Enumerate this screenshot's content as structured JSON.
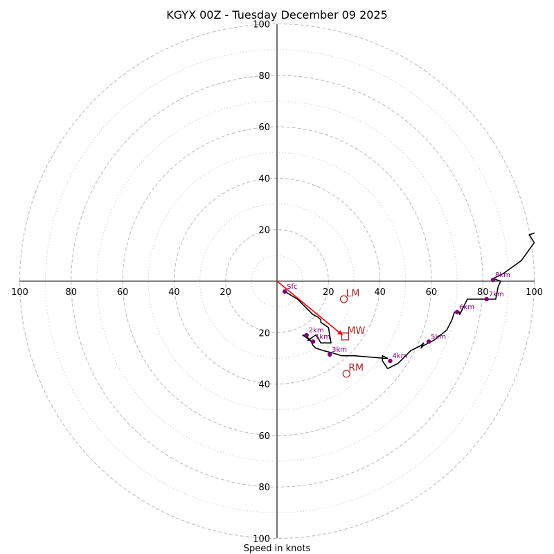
{
  "chart_data": {
    "type": "hodograph",
    "title": "KGYX 00Z - Tuesday December 09 2025",
    "xlabel": "Speed in knots",
    "xlim": [
      -100,
      100
    ],
    "ylim": [
      -100,
      100
    ],
    "rings_major": [
      20,
      40,
      60,
      80,
      100
    ],
    "rings_minor": [
      10,
      30,
      50,
      70,
      90
    ],
    "ticks": {
      "x": [
        {
          "v": -100,
          "label": "100"
        },
        {
          "v": -80,
          "label": "80"
        },
        {
          "v": -60,
          "label": "60"
        },
        {
          "v": -40,
          "label": "40"
        },
        {
          "v": -20,
          "label": "20"
        },
        {
          "v": 20,
          "label": "20"
        },
        {
          "v": 40,
          "label": "40"
        },
        {
          "v": 60,
          "label": "60"
        },
        {
          "v": 80,
          "label": "80"
        },
        {
          "v": 100,
          "label": "100"
        }
      ],
      "y": [
        {
          "v": 100,
          "label": "100"
        },
        {
          "v": 80,
          "label": "80"
        },
        {
          "v": 60,
          "label": "60"
        },
        {
          "v": 40,
          "label": "40"
        },
        {
          "v": 20,
          "label": "20"
        },
        {
          "v": -20,
          "label": "20"
        },
        {
          "v": -40,
          "label": "40"
        },
        {
          "v": -60,
          "label": "60"
        },
        {
          "v": -80,
          "label": "80"
        },
        {
          "v": -100,
          "label": "100"
        }
      ]
    },
    "wind_profile": {
      "u": [
        3,
        8,
        10,
        14,
        16,
        17,
        17,
        20,
        21,
        21,
        17,
        16,
        15,
        12,
        13,
        11,
        10,
        13,
        14,
        15,
        18,
        22,
        25,
        30,
        42,
        43,
        41,
        41,
        43,
        47,
        52,
        56,
        57,
        56,
        57,
        59,
        61,
        66,
        68,
        69,
        71,
        71,
        74,
        80,
        85,
        86,
        87,
        84,
        88,
        95,
        100,
        98,
        101
      ],
      "v": [
        -4,
        -7,
        -9,
        -13,
        -14,
        -15,
        -16,
        -18,
        -24,
        -24,
        -24,
        -22,
        -21,
        -23,
        -23,
        -21,
        -21,
        -23,
        -25,
        -26,
        -27,
        -28,
        -29,
        -29,
        -30,
        -30,
        -29,
        -31,
        -34,
        -32,
        -27,
        -25,
        -24,
        -26,
        -25,
        -24,
        -23,
        -19,
        -15,
        -12,
        -12,
        -13,
        -7,
        -7,
        -7,
        -2,
        0,
        1,
        3,
        8,
        15,
        18,
        19
      ],
      "color": "#000000"
    },
    "height_markers": [
      {
        "label": "Sfc",
        "u": 3,
        "v": -4
      },
      {
        "label": "1km",
        "u": 14,
        "v": -23.5
      },
      {
        "label": "2km",
        "u": 11.5,
        "v": -21
      },
      {
        "label": "3km",
        "u": 20.5,
        "v": -28.5
      },
      {
        "label": "4km",
        "u": 44,
        "v": -31
      },
      {
        "label": "5km",
        "u": 59,
        "v": -23.5
      },
      {
        "label": "6km",
        "u": 70,
        "v": -12
      },
      {
        "label": "7km",
        "u": 81.5,
        "v": -7
      },
      {
        "label": "8km",
        "u": 84,
        "v": 0.5
      }
    ],
    "marker_color": "#800080",
    "storm_motion": {
      "color": "#b22222",
      "LM": {
        "label": "LM",
        "u": 26,
        "v": -7
      },
      "MW": {
        "label": "MW",
        "u": 26.5,
        "v": -21.5
      },
      "RM": {
        "label": "RM",
        "u": 27,
        "v": -36
      }
    },
    "shear_vector": {
      "from": [
        0,
        0
      ],
      "to": [
        25.5,
        -21
      ],
      "color": "#ff0000"
    }
  }
}
